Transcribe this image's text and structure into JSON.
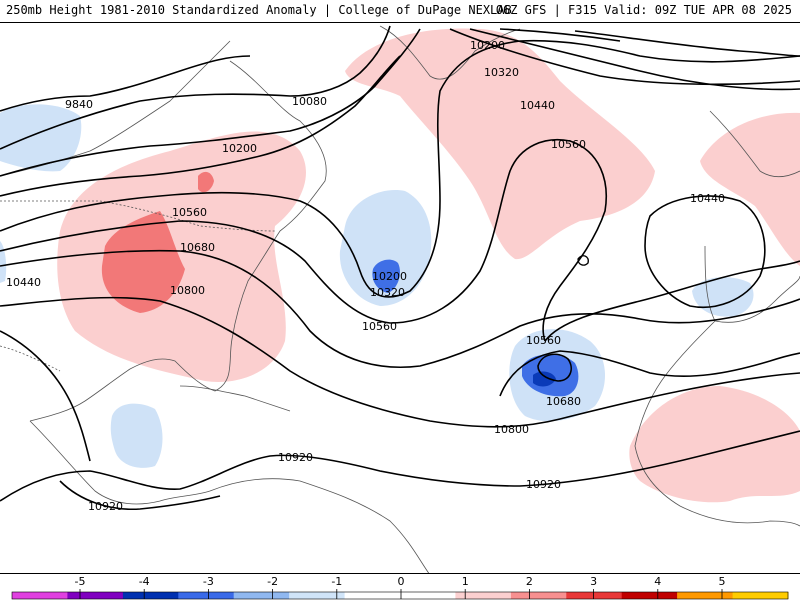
{
  "header": {
    "title": "250mb Height 1981-2010 Standardized Anomaly | College of DuPage NEXLAB",
    "run_info": "06Z GFS | F315 Valid: 09Z TUE APR 08 2025"
  },
  "contour_labels": [
    {
      "id": "9840",
      "text": "9840"
    },
    {
      "id": "10080",
      "text": "10080"
    },
    {
      "id": "10200a",
      "text": "10200"
    },
    {
      "id": "10200b",
      "text": "10200"
    },
    {
      "id": "10200c",
      "text": "10200"
    },
    {
      "id": "10320a",
      "text": "10320"
    },
    {
      "id": "10320b",
      "text": "10320"
    },
    {
      "id": "10440a",
      "text": "10440"
    },
    {
      "id": "10440b",
      "text": "10440"
    },
    {
      "id": "10440c",
      "text": "10440"
    },
    {
      "id": "10560a",
      "text": "10560"
    },
    {
      "id": "10560b",
      "text": "10560"
    },
    {
      "id": "10560c",
      "text": "10560"
    },
    {
      "id": "10560d",
      "text": "10560"
    },
    {
      "id": "10680a",
      "text": "10680"
    },
    {
      "id": "10680b",
      "text": "10680"
    },
    {
      "id": "10800a",
      "text": "10800"
    },
    {
      "id": "10800b",
      "text": "10800"
    },
    {
      "id": "10920a",
      "text": "10920"
    },
    {
      "id": "10920b",
      "text": "10920"
    },
    {
      "id": "10920c",
      "text": "10920"
    }
  ],
  "colorbar": {
    "ticks": [
      "-5",
      "-4",
      "-3",
      "-2",
      "-1",
      "0",
      "1",
      "2",
      "3",
      "4",
      "5"
    ],
    "colors": [
      "#e040e0",
      "#8000c0",
      "#0030b0",
      "#3a6ae8",
      "#90b8f0",
      "#d0e4f8",
      "#ffffff",
      "#ffffff",
      "#fcd0d0",
      "#f89090",
      "#e83838",
      "#c00000",
      "#ff9900",
      "#ffcc00"
    ]
  },
  "anomaly_colors": {
    "neg1": "#cfe2f7",
    "neg2": "#3f6fe6",
    "neg3": "#0a3ab8",
    "pos1": "#fbcfcf",
    "pos2": "#f27878"
  }
}
